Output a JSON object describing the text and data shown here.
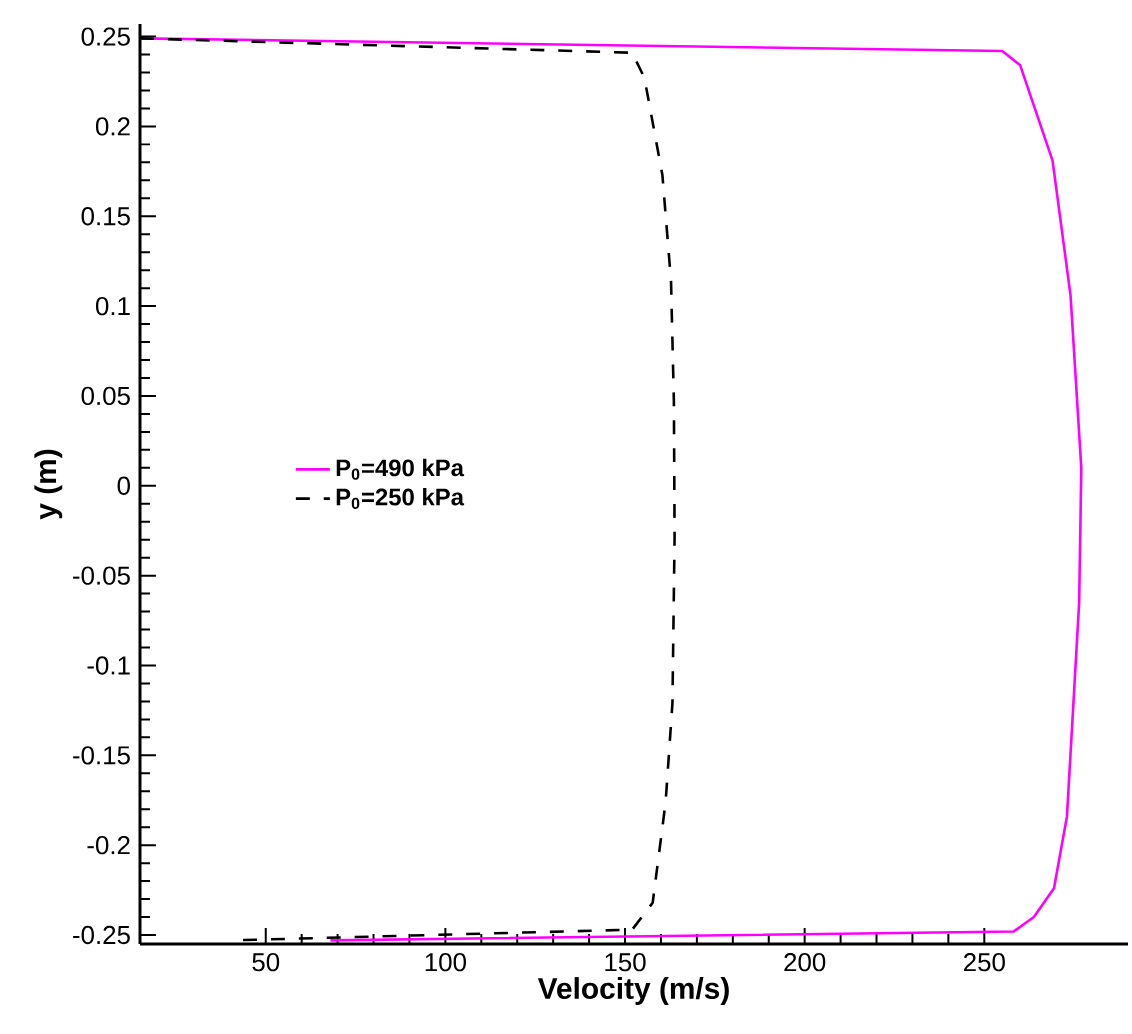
{
  "chart_data": {
    "type": "line",
    "xlabel": "Velocity (m/s)",
    "ylabel": "y (m)",
    "xlim": [
      15,
      290
    ],
    "ylim": [
      -0.255,
      0.257
    ],
    "xticks": [
      50,
      100,
      150,
      200,
      250
    ],
    "yticks": [
      {
        "value": 0.25,
        "label": "0.25"
      },
      {
        "value": 0.2,
        "label": "0.2"
      },
      {
        "value": 0.15,
        "label": "0.15"
      },
      {
        "value": 0.1,
        "label": "0.1"
      },
      {
        "value": 0.05,
        "label": "0.05"
      },
      {
        "value": 0,
        "label": "0"
      },
      {
        "value": -0.05,
        "label": "-0.05"
      },
      {
        "value": -0.1,
        "label": "-0.1"
      },
      {
        "value": -0.15,
        "label": "-0.15"
      },
      {
        "value": -0.2,
        "label": "-0.2"
      },
      {
        "value": -0.25,
        "label": "-0.25"
      }
    ],
    "grid": false,
    "legend": "left",
    "marker": "none",
    "series": [
      {
        "name": "P$_{0}$=490 kPa",
        "color": "#ff00ff",
        "line_style": "solid",
        "x": [
          15,
          255,
          260,
          269,
          274,
          277,
          276.4,
          273,
          269.4,
          263.8,
          258.2,
          68
        ],
        "values": [
          0.249,
          0.242,
          0.234,
          0.181,
          0.106,
          0.01,
          -0.065,
          -0.184,
          -0.224,
          -0.24,
          -0.248,
          -0.253
        ]
      },
      {
        "name": "P$_{0}$=250 kPa",
        "color": "#000000",
        "line_style": "dashed",
        "x": [
          15,
          152,
          155.4,
          160.4,
          162.8,
          163.6,
          163.8,
          163.2,
          161.3,
          157.7,
          152,
          40
        ],
        "values": [
          0.249,
          0.241,
          0.227,
          0.173,
          0.114,
          0.047,
          -0.028,
          -0.121,
          -0.176,
          -0.232,
          -0.247,
          -0.253
        ]
      }
    ]
  }
}
